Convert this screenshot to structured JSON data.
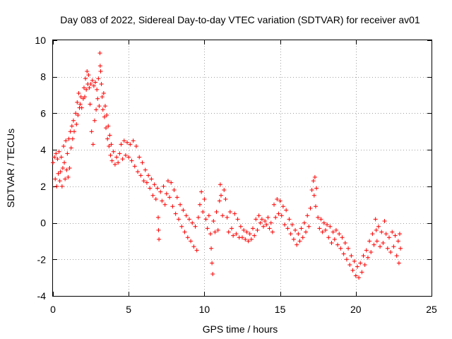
{
  "chart_data": {
    "type": "scatter",
    "title": "Day 083 of 2022, Sidereal Day-to-day VTEC variation (SDTVAR) for receiver av01",
    "xlabel": "GPS time / hours",
    "ylabel": "SDTVAR / TECUs",
    "xlim": [
      0,
      25
    ],
    "ylim": [
      -4,
      10
    ],
    "xticks": [
      "0",
      "5",
      "10",
      "15",
      "20",
      "25"
    ],
    "xtick_values": [
      0,
      5,
      10,
      15,
      20,
      25
    ],
    "yticks": [
      "-4",
      "-2",
      "0",
      "2",
      "4",
      "6",
      "8",
      "10"
    ],
    "ytick_values": [
      -4,
      -2,
      0,
      2,
      4,
      6,
      8,
      10
    ],
    "grid": true,
    "marker": "+",
    "color": "#ff0000",
    "series": [
      {
        "name": "SDTVAR",
        "points": [
          [
            0.0,
            3.3
          ],
          [
            0.1,
            3.6
          ],
          [
            0.15,
            2.4
          ],
          [
            0.2,
            3.8
          ],
          [
            0.25,
            2.0
          ],
          [
            0.3,
            3.5
          ],
          [
            0.35,
            2.7
          ],
          [
            0.4,
            3.9
          ],
          [
            0.45,
            2.3
          ],
          [
            0.5,
            2.8
          ],
          [
            0.55,
            3.6
          ],
          [
            0.6,
            2.0
          ],
          [
            0.65,
            3.0
          ],
          [
            0.7,
            4.2
          ],
          [
            0.75,
            3.3
          ],
          [
            0.8,
            2.4
          ],
          [
            0.85,
            4.5
          ],
          [
            0.9,
            2.9
          ],
          [
            0.95,
            3.8
          ],
          [
            1.0,
            2.5
          ],
          [
            1.05,
            4.6
          ],
          [
            1.1,
            3.0
          ],
          [
            1.15,
            5.0
          ],
          [
            1.2,
            4.1
          ],
          [
            1.25,
            5.3
          ],
          [
            1.3,
            4.6
          ],
          [
            1.35,
            5.6
          ],
          [
            1.4,
            5.0
          ],
          [
            1.5,
            6.0
          ],
          [
            1.55,
            5.4
          ],
          [
            1.6,
            6.6
          ],
          [
            1.65,
            5.9
          ],
          [
            1.7,
            7.1
          ],
          [
            1.75,
            6.3
          ],
          [
            1.8,
            6.5
          ],
          [
            1.85,
            6.9
          ],
          [
            1.9,
            6.3
          ],
          [
            2.0,
            6.8
          ],
          [
            2.05,
            7.4
          ],
          [
            2.1,
            6.9
          ],
          [
            2.15,
            7.9
          ],
          [
            2.2,
            7.3
          ],
          [
            2.25,
            8.3
          ],
          [
            2.3,
            7.6
          ],
          [
            2.35,
            8.1
          ],
          [
            2.4,
            7.4
          ],
          [
            2.45,
            6.5
          ],
          [
            2.5,
            7.6
          ],
          [
            2.55,
            5.0
          ],
          [
            2.6,
            7.8
          ],
          [
            2.65,
            4.3
          ],
          [
            2.7,
            7.5
          ],
          [
            2.75,
            5.6
          ],
          [
            2.8,
            7.7
          ],
          [
            2.85,
            6.2
          ],
          [
            2.9,
            7.3
          ],
          [
            2.95,
            6.8
          ],
          [
            3.0,
            7.9
          ],
          [
            3.05,
            6.4
          ],
          [
            3.1,
            9.3
          ],
          [
            3.12,
            8.6
          ],
          [
            3.15,
            8.3
          ],
          [
            3.2,
            7.6
          ],
          [
            3.25,
            6.9
          ],
          [
            3.3,
            6.2
          ],
          [
            3.35,
            7.1
          ],
          [
            3.4,
            5.8
          ],
          [
            3.45,
            6.4
          ],
          [
            3.5,
            5.2
          ],
          [
            3.55,
            5.9
          ],
          [
            3.6,
            4.6
          ],
          [
            3.65,
            5.3
          ],
          [
            3.7,
            4.2
          ],
          [
            3.75,
            4.8
          ],
          [
            3.8,
            3.7
          ],
          [
            3.85,
            4.3
          ],
          [
            3.9,
            3.4
          ],
          [
            4.0,
            3.9
          ],
          [
            4.1,
            3.2
          ],
          [
            4.2,
            3.6
          ],
          [
            4.3,
            3.3
          ],
          [
            4.4,
            3.8
          ],
          [
            4.5,
            4.3
          ],
          [
            4.6,
            3.5
          ],
          [
            4.7,
            4.5
          ],
          [
            4.8,
            3.7
          ],
          [
            4.9,
            4.4
          ],
          [
            5.0,
            3.6
          ],
          [
            5.1,
            4.3
          ],
          [
            5.2,
            3.4
          ],
          [
            5.3,
            4.5
          ],
          [
            5.4,
            3.1
          ],
          [
            5.5,
            4.2
          ],
          [
            5.6,
            2.8
          ],
          [
            5.7,
            3.6
          ],
          [
            5.8,
            2.6
          ],
          [
            5.9,
            3.3
          ],
          [
            6.0,
            2.3
          ],
          [
            6.1,
            2.9
          ],
          [
            6.2,
            2.2
          ],
          [
            6.3,
            2.6
          ],
          [
            6.4,
            1.9
          ],
          [
            6.5,
            2.4
          ],
          [
            6.6,
            1.5
          ],
          [
            6.7,
            2.1
          ],
          [
            6.8,
            1.3
          ],
          [
            6.9,
            1.9
          ],
          [
            6.95,
            0.3
          ],
          [
            6.97,
            -0.4
          ],
          [
            7.0,
            -0.9
          ],
          [
            7.1,
            1.7
          ],
          [
            7.2,
            1.2
          ],
          [
            7.3,
            2.0
          ],
          [
            7.4,
            1.0
          ],
          [
            7.5,
            1.6
          ],
          [
            7.6,
            2.3
          ],
          [
            7.7,
            1.4
          ],
          [
            7.8,
            2.2
          ],
          [
            7.9,
            0.9
          ],
          [
            8.0,
            1.8
          ],
          [
            8.1,
            0.5
          ],
          [
            8.2,
            1.4
          ],
          [
            8.3,
            0.2
          ],
          [
            8.4,
            1.0
          ],
          [
            8.5,
            -0.2
          ],
          [
            8.6,
            0.7
          ],
          [
            8.7,
            -0.5
          ],
          [
            8.8,
            0.4
          ],
          [
            8.9,
            -0.8
          ],
          [
            9.0,
            0.2
          ],
          [
            9.1,
            -1.0
          ],
          [
            9.2,
            0.0
          ],
          [
            9.3,
            -1.3
          ],
          [
            9.4,
            -0.2
          ],
          [
            9.5,
            -1.5
          ],
          [
            9.6,
            0.3
          ],
          [
            9.7,
            1.0
          ],
          [
            9.8,
            1.7
          ],
          [
            9.9,
            0.6
          ],
          [
            10.0,
            1.3
          ],
          [
            10.1,
            0.2
          ],
          [
            10.2,
            -0.3
          ],
          [
            10.3,
            0.4
          ],
          [
            10.4,
            -0.6
          ],
          [
            10.45,
            -1.4
          ],
          [
            10.5,
            -2.2
          ],
          [
            10.55,
            -2.8
          ],
          [
            10.6,
            0.1
          ],
          [
            10.7,
            -0.5
          ],
          [
            10.8,
            0.6
          ],
          [
            10.9,
            -0.4
          ],
          [
            11.0,
            1.2
          ],
          [
            11.05,
            2.1
          ],
          [
            11.1,
            1.5
          ],
          [
            11.2,
            0.4
          ],
          [
            11.3,
            1.8
          ],
          [
            11.4,
            1.3
          ],
          [
            11.5,
            0.3
          ],
          [
            11.6,
            -0.5
          ],
          [
            11.7,
            0.6
          ],
          [
            11.8,
            -0.3
          ],
          [
            11.9,
            -0.7
          ],
          [
            12.0,
            0.5
          ],
          [
            12.1,
            -0.6
          ],
          [
            12.2,
            0.2
          ],
          [
            12.3,
            -0.8
          ],
          [
            12.4,
            -0.2
          ],
          [
            12.5,
            -0.8
          ],
          [
            12.6,
            -0.4
          ],
          [
            12.7,
            -0.9
          ],
          [
            12.8,
            -0.5
          ],
          [
            12.9,
            -1.0
          ],
          [
            13.0,
            -0.6
          ],
          [
            13.1,
            -0.9
          ],
          [
            13.2,
            -0.3
          ],
          [
            13.3,
            -0.7
          ],
          [
            13.4,
            0.2
          ],
          [
            13.5,
            -0.4
          ],
          [
            13.6,
            0.4
          ],
          [
            13.7,
            0.0
          ],
          [
            13.8,
            0.2
          ],
          [
            13.9,
            -0.2
          ],
          [
            14.0,
            0.1
          ],
          [
            14.1,
            -0.1
          ],
          [
            14.2,
            0.3
          ],
          [
            14.3,
            -0.3
          ],
          [
            14.4,
            0.0
          ],
          [
            14.5,
            -0.5
          ],
          [
            14.6,
            1.0
          ],
          [
            14.7,
            0.3
          ],
          [
            14.8,
            1.3
          ],
          [
            14.9,
            0.5
          ],
          [
            15.0,
            1.2
          ],
          [
            15.1,
            0.4
          ],
          [
            15.2,
            0.9
          ],
          [
            15.3,
            -0.1
          ],
          [
            15.4,
            0.7
          ],
          [
            15.5,
            -0.3
          ],
          [
            15.6,
            0.2
          ],
          [
            15.7,
            -0.6
          ],
          [
            15.8,
            -0.1
          ],
          [
            15.9,
            -0.9
          ],
          [
            16.0,
            -0.4
          ],
          [
            16.1,
            -1.2
          ],
          [
            16.2,
            -0.6
          ],
          [
            16.3,
            -1.0
          ],
          [
            16.4,
            -0.3
          ],
          [
            16.5,
            -0.8
          ],
          [
            16.6,
            0.0
          ],
          [
            16.7,
            -0.5
          ],
          [
            16.8,
            0.4
          ],
          [
            16.9,
            -0.2
          ],
          [
            17.0,
            0.8
          ],
          [
            17.1,
            1.8
          ],
          [
            17.2,
            2.3
          ],
          [
            17.25,
            1.5
          ],
          [
            17.3,
            2.5
          ],
          [
            17.35,
            0.9
          ],
          [
            17.4,
            1.9
          ],
          [
            17.5,
            0.3
          ],
          [
            17.6,
            -0.3
          ],
          [
            17.7,
            0.2
          ],
          [
            17.8,
            -0.5
          ],
          [
            17.9,
            0.0
          ],
          [
            18.0,
            -0.4
          ],
          [
            18.1,
            -0.1
          ],
          [
            18.2,
            -0.8
          ],
          [
            18.3,
            -0.2
          ],
          [
            18.4,
            -1.1
          ],
          [
            18.5,
            -0.5
          ],
          [
            18.6,
            -0.9
          ],
          [
            18.7,
            -0.4
          ],
          [
            18.8,
            -1.2
          ],
          [
            18.9,
            -0.6
          ],
          [
            19.0,
            -1.4
          ],
          [
            19.1,
            -0.8
          ],
          [
            19.2,
            -1.7
          ],
          [
            19.3,
            -1.1
          ],
          [
            19.4,
            -2.0
          ],
          [
            19.5,
            -1.4
          ],
          [
            19.6,
            -2.3
          ],
          [
            19.7,
            -1.8
          ],
          [
            19.8,
            -2.6
          ],
          [
            19.9,
            -2.1
          ],
          [
            20.0,
            -2.9
          ],
          [
            20.1,
            -2.4
          ],
          [
            20.2,
            -3.0
          ],
          [
            20.3,
            -2.2
          ],
          [
            20.4,
            -2.7
          ],
          [
            20.5,
            -1.8
          ],
          [
            20.6,
            -2.3
          ],
          [
            20.7,
            -1.5
          ],
          [
            20.8,
            -1.9
          ],
          [
            20.9,
            -1.0
          ],
          [
            21.0,
            -1.6
          ],
          [
            21.1,
            -0.6
          ],
          [
            21.2,
            -1.2
          ],
          [
            21.3,
            0.2
          ],
          [
            21.35,
            -0.4
          ],
          [
            21.4,
            -1.0
          ],
          [
            21.5,
            -0.2
          ],
          [
            21.6,
            -1.3
          ],
          [
            21.7,
            -0.5
          ],
          [
            21.8,
            -1.1
          ],
          [
            21.9,
            0.1
          ],
          [
            22.0,
            -0.6
          ],
          [
            22.1,
            -1.4
          ],
          [
            22.2,
            -0.8
          ],
          [
            22.3,
            -1.6
          ],
          [
            22.4,
            -0.5
          ],
          [
            22.5,
            -1.3
          ],
          [
            22.6,
            -0.7
          ],
          [
            22.7,
            -1.8
          ],
          [
            22.8,
            -1.0
          ],
          [
            22.85,
            -2.2
          ],
          [
            22.9,
            -0.6
          ],
          [
            22.95,
            -1.4
          ]
        ]
      }
    ]
  }
}
